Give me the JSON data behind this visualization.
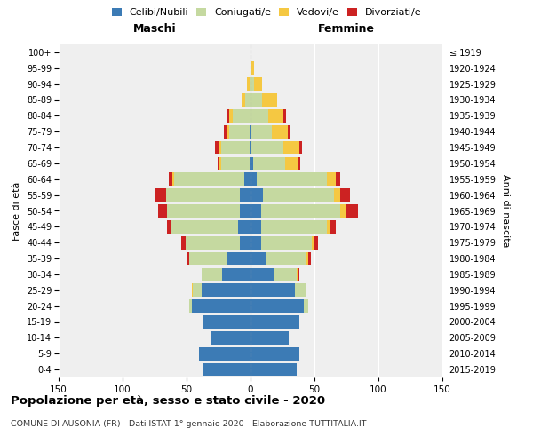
{
  "age_groups": [
    "0-4",
    "5-9",
    "10-14",
    "15-19",
    "20-24",
    "25-29",
    "30-34",
    "35-39",
    "40-44",
    "45-49",
    "50-54",
    "55-59",
    "60-64",
    "65-69",
    "70-74",
    "75-79",
    "80-84",
    "85-89",
    "90-94",
    "95-99",
    "100+"
  ],
  "birth_years": [
    "2015-2019",
    "2010-2014",
    "2005-2009",
    "2000-2004",
    "1995-1999",
    "1990-1994",
    "1985-1989",
    "1980-1984",
    "1975-1979",
    "1970-1974",
    "1965-1969",
    "1960-1964",
    "1955-1959",
    "1950-1954",
    "1945-1949",
    "1940-1944",
    "1935-1939",
    "1930-1934",
    "1925-1929",
    "1920-1924",
    "≤ 1919"
  ],
  "colors": {
    "celibi": "#3c7bb5",
    "coniugati": "#c5d9a0",
    "vedovi": "#f5c842",
    "divorziati": "#cc2222"
  },
  "males": {
    "celibi": [
      37,
      40,
      31,
      37,
      46,
      38,
      22,
      18,
      8,
      10,
      8,
      8,
      5,
      1,
      1,
      1,
      0,
      0,
      0,
      0,
      0
    ],
    "coniugati": [
      0,
      0,
      0,
      0,
      2,
      7,
      16,
      30,
      43,
      52,
      57,
      58,
      55,
      22,
      22,
      16,
      14,
      4,
      1,
      0,
      0
    ],
    "vedovi": [
      0,
      0,
      0,
      0,
      0,
      1,
      0,
      0,
      0,
      0,
      0,
      0,
      1,
      1,
      2,
      2,
      3,
      3,
      2,
      0,
      0
    ],
    "divorziati": [
      0,
      0,
      0,
      0,
      0,
      0,
      0,
      2,
      3,
      3,
      7,
      8,
      3,
      2,
      3,
      2,
      2,
      0,
      0,
      0,
      0
    ]
  },
  "females": {
    "celibi": [
      36,
      38,
      30,
      38,
      42,
      35,
      18,
      12,
      8,
      8,
      8,
      10,
      5,
      2,
      1,
      1,
      0,
      1,
      1,
      1,
      0
    ],
    "coniugati": [
      0,
      0,
      0,
      0,
      3,
      8,
      18,
      32,
      40,
      52,
      62,
      55,
      55,
      25,
      25,
      16,
      14,
      8,
      2,
      0,
      0
    ],
    "vedovi": [
      0,
      0,
      0,
      0,
      0,
      0,
      1,
      1,
      2,
      2,
      5,
      5,
      7,
      10,
      12,
      12,
      12,
      12,
      6,
      2,
      1
    ],
    "divorziati": [
      0,
      0,
      0,
      0,
      0,
      0,
      1,
      2,
      3,
      5,
      9,
      8,
      3,
      2,
      2,
      2,
      2,
      0,
      0,
      0,
      0
    ]
  },
  "title": "Popolazione per età, sesso e stato civile - 2020",
  "subtitle": "COMUNE DI AUSONIA (FR) - Dati ISTAT 1° gennaio 2020 - Elaborazione TUTTITALIA.IT",
  "xlabel_left": "Maschi",
  "xlabel_right": "Femmine",
  "ylabel_left": "Fasce di età",
  "ylabel_right": "Anni di nascita",
  "legend_labels": [
    "Celibi/Nubili",
    "Coniugati/e",
    "Vedovi/e",
    "Divorziati/e"
  ],
  "xlim": 150,
  "bg_color": "#efefef"
}
